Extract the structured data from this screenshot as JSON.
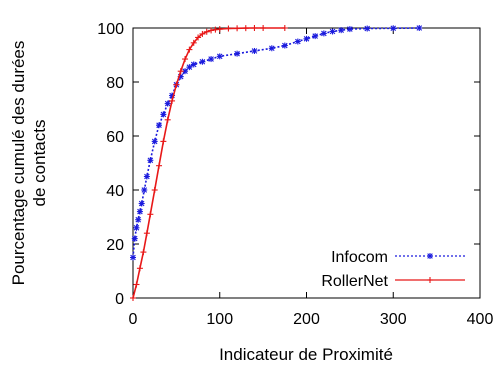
{
  "chart_data": {
    "type": "line",
    "title": "",
    "xlabel": "Indicateur de Proximité",
    "ylabel_lines": [
      "Pourcentage cumulé des durées",
      "de contacts"
    ],
    "xlim": [
      0,
      400
    ],
    "ylim": [
      0,
      100
    ],
    "xticks": [
      0,
      100,
      200,
      300,
      400
    ],
    "yticks": [
      0,
      20,
      40,
      60,
      80,
      100
    ],
    "xtick_labels": [
      "0",
      "100",
      "200",
      "300",
      "400"
    ],
    "ytick_labels": [
      "0",
      "20",
      "40",
      "60",
      "80",
      "100"
    ],
    "grid": false,
    "legend_position": "bottom-right",
    "series": [
      {
        "name": "Infocom",
        "color": "#1a1add",
        "line_style": "dotted",
        "marker": "asterisk",
        "x": [
          0,
          2,
          4,
          6,
          8,
          10,
          13,
          16,
          20,
          25,
          30,
          35,
          40,
          45,
          50,
          55,
          60,
          65,
          70,
          80,
          90,
          100,
          120,
          140,
          160,
          175,
          190,
          200,
          210,
          220,
          230,
          240,
          250,
          270,
          300,
          330
        ],
        "y": [
          15,
          22,
          26,
          29,
          32,
          35,
          40,
          45,
          51,
          58,
          64,
          68,
          72,
          75,
          79,
          82,
          84,
          85.5,
          86.5,
          87.5,
          88.5,
          89.5,
          90.5,
          91.5,
          92.5,
          93.5,
          95,
          96,
          97,
          98,
          98.7,
          99.2,
          99.6,
          99.8,
          99.9,
          100
        ]
      },
      {
        "name": "RollerNet",
        "color": "#e81818",
        "line_style": "solid",
        "marker": "plus",
        "x": [
          0,
          4,
          8,
          12,
          16,
          20,
          25,
          30,
          35,
          40,
          45,
          50,
          55,
          60,
          65,
          70,
          75,
          80,
          85,
          90,
          95,
          100,
          110,
          120,
          130,
          140,
          150,
          175
        ],
        "y": [
          0,
          5,
          11,
          17,
          24,
          31,
          40,
          49,
          58,
          66,
          73,
          79,
          84,
          88.5,
          92,
          94.5,
          96.5,
          97.8,
          98.6,
          99.1,
          99.4,
          99.6,
          99.8,
          99.9,
          99.95,
          100,
          100,
          100
        ]
      }
    ]
  }
}
